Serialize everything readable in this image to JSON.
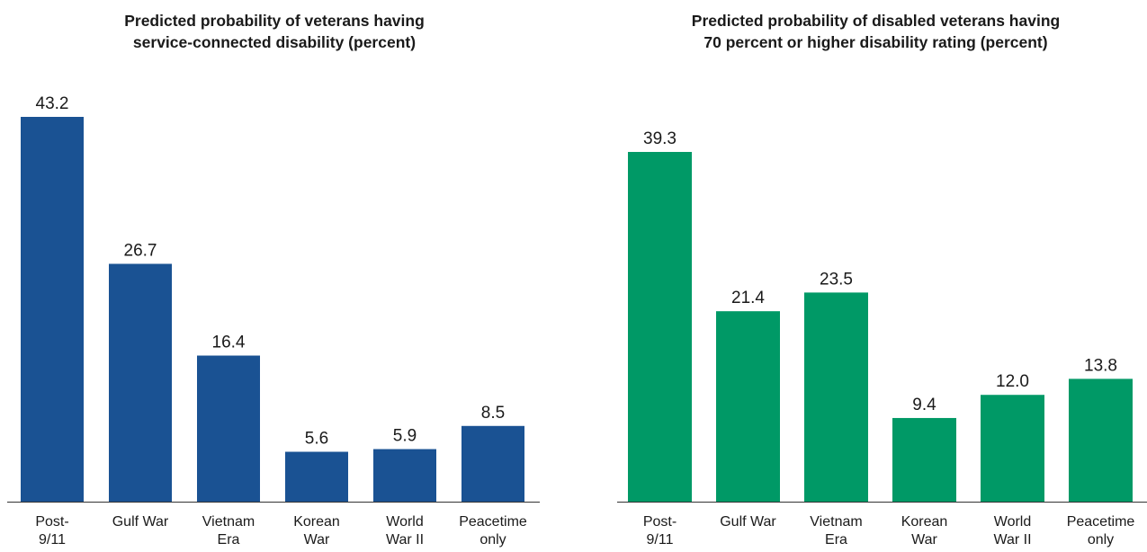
{
  "chart_data": [
    {
      "type": "bar",
      "title_lines": [
        "Predicted probability of veterans having",
        "service-connected disability (percent)"
      ],
      "categories": [
        [
          "Post-",
          "9/11"
        ],
        [
          "Gulf War"
        ],
        [
          "Vietnam",
          "Era"
        ],
        [
          "Korean",
          "War"
        ],
        [
          "World",
          "War II"
        ],
        [
          "Peacetime",
          "only"
        ]
      ],
      "values": [
        43.2,
        26.7,
        16.4,
        5.6,
        5.9,
        8.5
      ],
      "value_labels": [
        "43.2",
        "26.7",
        "16.4",
        "5.6",
        "5.9",
        "8.5"
      ],
      "ylim": [
        0,
        43.2
      ],
      "color": "#1a5293",
      "grid": false
    },
    {
      "type": "bar",
      "title_lines": [
        "Predicted probability of disabled veterans having",
        "70 percent or higher disability rating (percent)"
      ],
      "categories": [
        [
          "Post-",
          "9/11"
        ],
        [
          "Gulf War"
        ],
        [
          "Vietnam",
          "Era"
        ],
        [
          "Korean",
          "War"
        ],
        [
          "World",
          "War II"
        ],
        [
          "Peacetime",
          "only"
        ]
      ],
      "values": [
        39.3,
        21.4,
        23.5,
        9.4,
        12.0,
        13.8
      ],
      "value_labels": [
        "39.3",
        "21.4",
        "23.5",
        "9.4",
        "12.0",
        "13.8"
      ],
      "ylim": [
        0,
        39.3
      ],
      "color": "#009966",
      "grid": false
    }
  ]
}
